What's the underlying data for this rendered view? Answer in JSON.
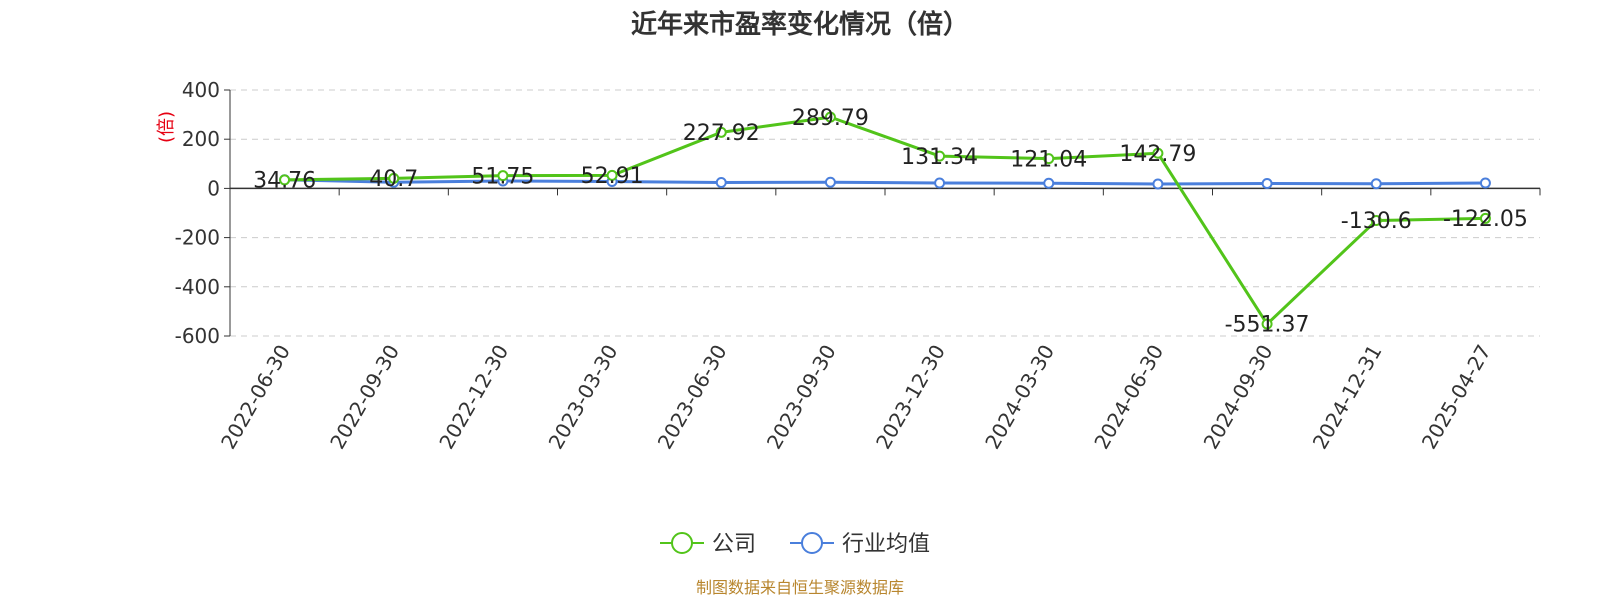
{
  "chart_data": {
    "type": "line",
    "title": "近年来市盈率变化情况（倍）",
    "ylabel": "(倍)",
    "xlabel": "",
    "ylim": [
      -600,
      400
    ],
    "yticks": [
      400,
      200,
      0,
      -200,
      -400,
      -600
    ],
    "categories": [
      "2022-06-30",
      "2022-09-30",
      "2022-12-30",
      "2023-03-30",
      "2023-06-30",
      "2023-09-30",
      "2023-12-30",
      "2024-03-30",
      "2024-06-30",
      "2024-09-30",
      "2024-12-31",
      "2025-04-27"
    ],
    "series": [
      {
        "name": "公司",
        "color": "#52c41a",
        "values": [
          34.76,
          40.7,
          51.75,
          52.91,
          227.92,
          289.79,
          131.34,
          121.04,
          142.79,
          -551.37,
          -130.6,
          -122.05
        ],
        "labels": [
          "34.76",
          "40.7",
          "51.75",
          "52.91",
          "227.92",
          "289.79",
          "131.34",
          "121.04",
          "142.79",
          "-551.37",
          "-130.6",
          "-122.05"
        ]
      },
      {
        "name": "行业均值",
        "color": "#4a7fdc",
        "values": [
          35,
          25,
          30,
          28,
          24,
          25,
          22,
          21,
          18,
          20,
          19,
          22
        ]
      }
    ],
    "grid": true,
    "legend_position": "bottom-center"
  },
  "source": "制图数据来自恒生聚源数据库"
}
